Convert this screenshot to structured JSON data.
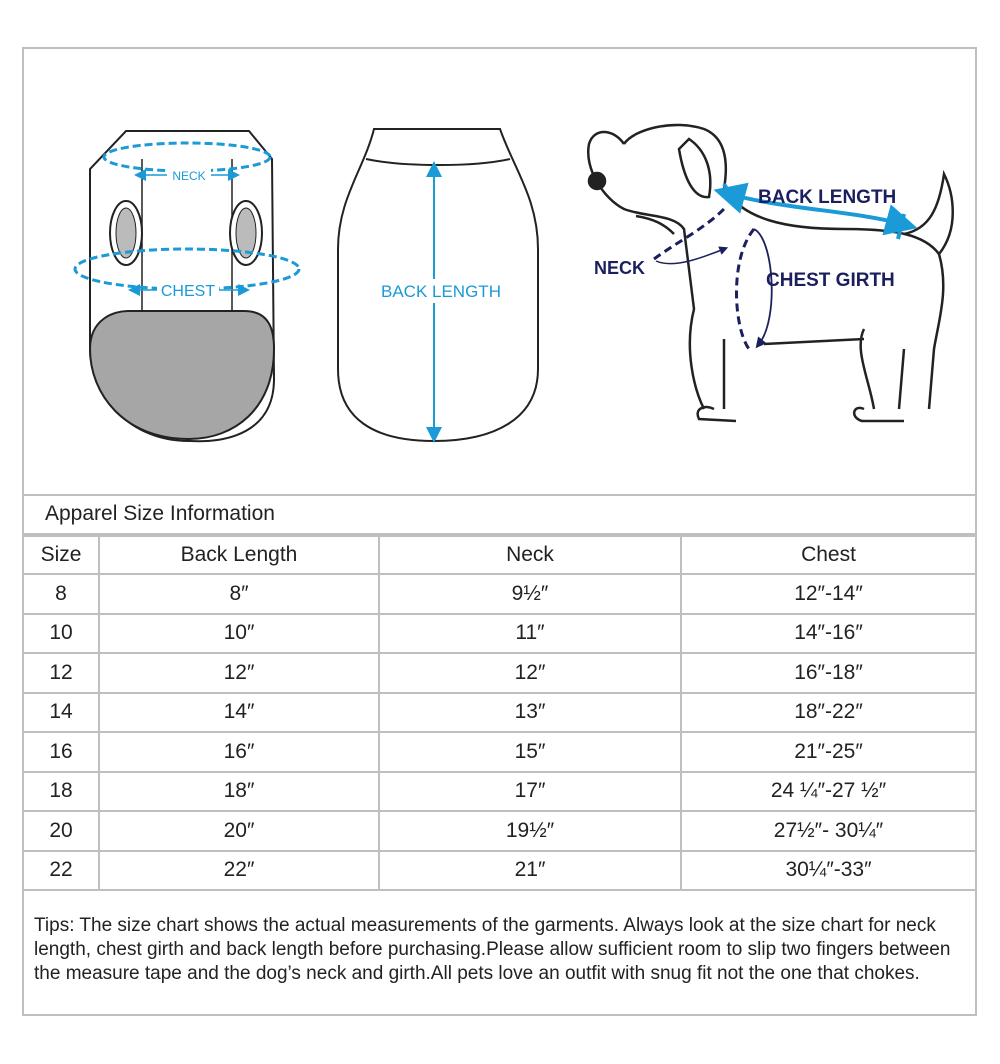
{
  "illustrations": {
    "vest_front": {
      "neck_label": "NECK",
      "chest_label": "CHEST"
    },
    "vest_back": {
      "back_length_label": "BACK LENGTH"
    },
    "dog": {
      "back_length_label": "BACK LENGTH",
      "neck_label": "NECK",
      "chest_girth_label": "CHEST GIRTH"
    },
    "colors": {
      "measure_blue": "#1a9ad6",
      "navy": "#1c1f5e",
      "gray_fill": "#a6a6a6"
    }
  },
  "table": {
    "title": "Apparel Size Information",
    "columns": [
      "Size",
      "Back Length",
      "Neck",
      "Chest"
    ],
    "rows": [
      [
        "8",
        "8″",
        "9½″",
        "12″-14″"
      ],
      [
        "10",
        "10″",
        "11″",
        "14″-16″"
      ],
      [
        "12",
        "12″",
        "12″",
        "16″-18″"
      ],
      [
        "14",
        "14″",
        "13″",
        "18″-22″"
      ],
      [
        "16",
        "16″",
        "15″",
        "21″-25″"
      ],
      [
        "18",
        "18″",
        "17″",
        "24 ¼″-27 ½″"
      ],
      [
        "20",
        "20″",
        "19½″",
        "27½″- 30¼″"
      ],
      [
        "22",
        "22″",
        "21″",
        "30¼″-33″"
      ]
    ]
  },
  "tips": "Tips:  The size chart shows the actual measurements of the  garments.  Always look at the size chart for neck length, chest girth and back length before purchasing.Please allow sufficient room to slip two fingers between the measure tape and the dog’s neck and girth.All pets love an outfit with snug fit not the one that chokes."
}
